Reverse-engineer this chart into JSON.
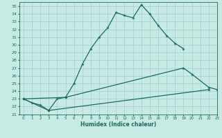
{
  "xlabel": "Humidex (Indice chaleur)",
  "xlim": [
    -0.5,
    23
  ],
  "ylim": [
    21,
    35.5
  ],
  "xticks": [
    0,
    1,
    2,
    3,
    4,
    5,
    6,
    7,
    8,
    9,
    10,
    11,
    12,
    13,
    14,
    15,
    16,
    17,
    18,
    19,
    20,
    21,
    22,
    23
  ],
  "yticks": [
    21,
    22,
    23,
    24,
    25,
    26,
    27,
    28,
    29,
    30,
    31,
    32,
    33,
    34,
    35
  ],
  "bg_color": "#c8eae4",
  "line_color": "#1a6b5a",
  "grid_color": "#a0cccc",
  "line1_x": [
    0,
    1,
    2,
    3,
    4,
    5,
    6,
    7,
    8,
    9,
    10,
    11,
    12,
    13,
    14,
    15,
    16,
    17,
    18,
    19
  ],
  "line1_y": [
    23.0,
    22.5,
    22.2,
    21.5,
    23.0,
    23.2,
    25.0,
    27.5,
    29.5,
    31.0,
    32.2,
    34.2,
    33.8,
    33.5,
    35.2,
    34.0,
    32.5,
    31.2,
    30.2,
    29.5
  ],
  "line2_x": [
    0,
    5,
    19,
    20,
    22,
    23
  ],
  "line2_y": [
    23.0,
    23.2,
    27.0,
    26.2,
    24.5,
    24.2
  ],
  "line3_x": [
    0,
    3,
    22
  ],
  "line3_y": [
    23.0,
    21.5,
    24.2
  ]
}
